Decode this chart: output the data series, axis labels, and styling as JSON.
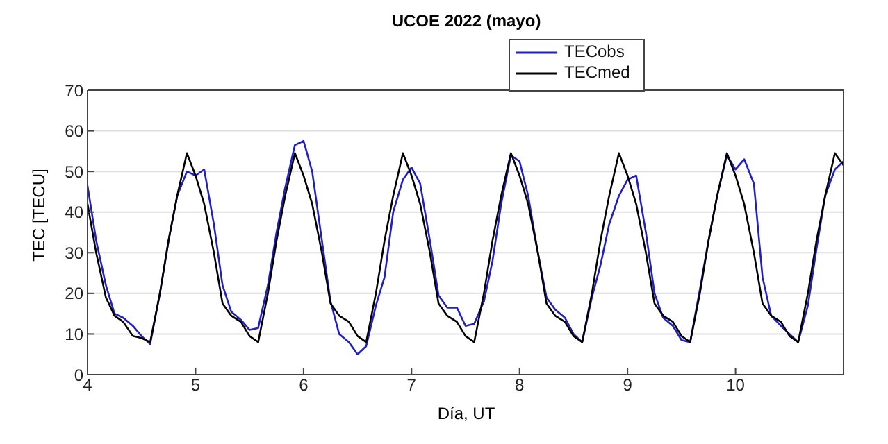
{
  "chart_data": {
    "type": "line",
    "title": "UCOE 2022 (mayo)",
    "xlabel": "Día, UT",
    "ylabel": "TEC [TECU]",
    "x": [
      4,
      4.08,
      4.17,
      4.25,
      4.33,
      4.42,
      4.5,
      4.58,
      4.67,
      4.75,
      4.83,
      4.92,
      5,
      5.08,
      5.17,
      5.25,
      5.33,
      5.42,
      5.5,
      5.58,
      5.67,
      5.75,
      5.83,
      5.92,
      6,
      6.08,
      6.17,
      6.25,
      6.33,
      6.42,
      6.5,
      6.58,
      6.67,
      6.75,
      6.83,
      6.92,
      7,
      7.08,
      7.17,
      7.25,
      7.33,
      7.42,
      7.5,
      7.58,
      7.67,
      7.75,
      7.83,
      7.92,
      8,
      8.08,
      8.17,
      8.25,
      8.33,
      8.42,
      8.5,
      8.58,
      8.67,
      8.75,
      8.83,
      8.92,
      9,
      9.08,
      9.17,
      9.25,
      9.33,
      9.42,
      9.5,
      9.58,
      9.67,
      9.75,
      9.83,
      9.92,
      10,
      10.08,
      10.17,
      10.25,
      10.33,
      10.42,
      10.5,
      10.58,
      10.67,
      10.75,
      10.83,
      10.92,
      11
    ],
    "series": [
      {
        "name": "TECobs",
        "color": "#1f1fc4",
        "values": [
          46.5,
          33,
          22,
          15,
          14,
          12,
          9.5,
          7.5,
          20,
          33,
          44,
          50,
          49,
          50.5,
          37,
          22,
          15.5,
          13.5,
          11,
          11.5,
          22,
          35,
          46,
          56.5,
          57.5,
          50,
          33,
          18,
          10,
          8,
          5,
          7,
          17,
          24,
          40,
          48,
          51,
          47,
          33,
          19.5,
          16.5,
          16.5,
          12,
          12.5,
          18,
          28,
          42,
          54,
          52.5,
          44,
          30,
          19,
          16,
          14,
          10,
          8,
          19,
          27,
          37,
          44,
          48,
          49,
          35,
          20,
          14,
          12,
          8.5,
          8,
          21,
          33,
          44,
          54,
          50.5,
          53,
          47,
          24,
          14.5,
          12,
          10,
          8,
          17,
          31,
          44,
          50.5,
          52.5
        ]
      },
      {
        "name": "TECmed",
        "color": "#000000",
        "values": [
          42,
          30,
          19,
          14.5,
          13,
          9.5,
          9,
          8,
          20,
          33,
          44,
          54.5,
          49,
          42,
          30,
          17.5,
          14.5,
          13,
          9.5,
          8,
          20,
          33,
          44,
          54.5,
          49,
          42,
          30,
          17.5,
          14.5,
          13,
          9.5,
          8,
          20,
          33,
          44,
          54.5,
          49,
          42,
          30,
          17.5,
          14.5,
          13,
          9.5,
          8,
          20,
          33,
          44,
          54.5,
          49,
          42,
          30,
          17.5,
          14.5,
          13,
          9.5,
          8,
          20,
          33,
          44,
          54.5,
          49,
          42,
          30,
          17.5,
          14.5,
          13,
          9.5,
          8,
          20,
          33,
          44,
          54.5,
          49,
          42,
          30,
          17.5,
          14.5,
          13,
          9.5,
          8,
          20,
          33,
          44,
          54.5,
          51.5
        ]
      }
    ],
    "xlim": [
      4,
      11
    ],
    "xticks": [
      4,
      5,
      6,
      7,
      8,
      9,
      10
    ],
    "ylim": [
      0,
      70
    ],
    "yticks": [
      0,
      10,
      20,
      30,
      40,
      50,
      60,
      70
    ],
    "grid": "y",
    "legend": "top",
    "marker": "none",
    "line_style": "solid"
  }
}
